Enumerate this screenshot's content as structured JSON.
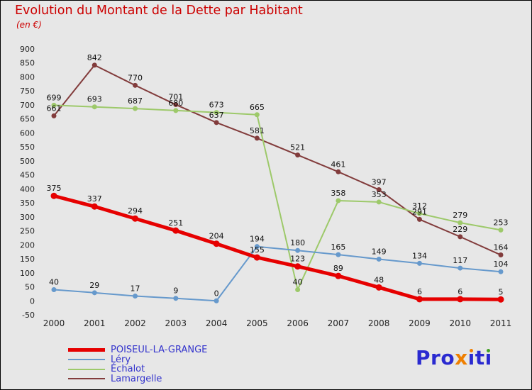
{
  "chart_data": {
    "type": "line",
    "title": "Evolution du Montant de la Dette par Habitant",
    "subtitle": "(en €)",
    "x": [
      2000,
      2001,
      2002,
      2003,
      2004,
      2005,
      2006,
      2007,
      2008,
      2009,
      2010,
      2011
    ],
    "yticks": [
      900,
      850,
      800,
      750,
      700,
      650,
      600,
      550,
      500,
      450,
      400,
      350,
      300,
      250,
      200,
      150,
      100,
      50,
      0,
      -50
    ],
    "ylim": [
      -50,
      900
    ],
    "grid": false,
    "legend_position": "bottom-left",
    "series": [
      {
        "name": "POISEUL-LA-GRANGE",
        "color": "#e60000",
        "width": 5,
        "values": [
          375,
          337,
          294,
          251,
          204,
          155,
          123,
          89,
          48,
          6,
          6,
          5
        ]
      },
      {
        "name": "Léry",
        "color": "#6699cc",
        "width": 2,
        "values": [
          40,
          29,
          17,
          9,
          0,
          194,
          180,
          165,
          149,
          134,
          117,
          104
        ]
      },
      {
        "name": "Échalot",
        "color": "#9dc96a",
        "width": 2,
        "values": [
          699,
          693,
          687,
          680,
          673,
          665,
          40,
          358,
          353,
          312,
          279,
          253
        ]
      },
      {
        "name": "Lamargelle",
        "color": "#823c3c",
        "width": 2,
        "values": [
          661,
          842,
          770,
          701,
          637,
          581,
          521,
          461,
          397,
          291,
          229,
          164
        ]
      }
    ]
  },
  "colors": {
    "background": "#e7e7e7",
    "title": "#cc0000",
    "legend_text": "#3333cc",
    "data_label": "#111111",
    "axis_label": "#222222"
  },
  "logo": {
    "pro": "Pro",
    "x": "x",
    "i1": "ı",
    "t": "t",
    "i2": "ı"
  }
}
